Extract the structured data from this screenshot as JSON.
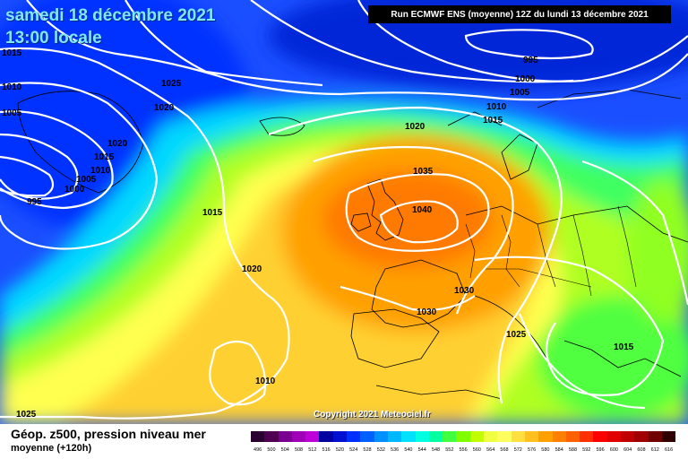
{
  "header": {
    "date": "samedi 18 décembre 2021",
    "time": "13:00 locale",
    "run": "Run ECMWF ENS (moyenne) 12Z du lundi 13 décembre 2021"
  },
  "copyright": "Copyright 2021 Meteociel.fr",
  "footer": {
    "title": "Géop. z500, pression niveau mer",
    "subtitle": "moyenne   (+120h)"
  },
  "isobar_labels": [
    {
      "id": "iso-1015-a",
      "text": "1015"
    },
    {
      "id": "iso-1010-a",
      "text": "1010"
    },
    {
      "id": "iso-1005-a",
      "text": "1005"
    },
    {
      "id": "iso-1025-a",
      "text": "1025"
    },
    {
      "id": "iso-1020-a",
      "text": "1020"
    },
    {
      "id": "iso-1020-b",
      "text": "1020"
    },
    {
      "id": "iso-1015-b",
      "text": "1015"
    },
    {
      "id": "iso-1010-b",
      "text": "1010"
    },
    {
      "id": "iso-1005-b",
      "text": "1005"
    },
    {
      "id": "iso-1000-a",
      "text": "1000"
    },
    {
      "id": "iso-995-a",
      "text": "995"
    },
    {
      "id": "iso-1015-c",
      "text": "1015"
    },
    {
      "id": "iso-1020-c",
      "text": "1020"
    },
    {
      "id": "iso-1010-c",
      "text": "1010"
    },
    {
      "id": "iso-1025-b",
      "text": "1025"
    },
    {
      "id": "iso-995-b",
      "text": "995"
    },
    {
      "id": "iso-1000-b",
      "text": "1000"
    },
    {
      "id": "iso-1005-c",
      "text": "1005"
    },
    {
      "id": "iso-1010-d",
      "text": "1010"
    },
    {
      "id": "iso-1015-d",
      "text": "1015"
    },
    {
      "id": "iso-1020-d",
      "text": "1020"
    },
    {
      "id": "iso-1035",
      "text": "1035"
    },
    {
      "id": "iso-1040",
      "text": "1040"
    },
    {
      "id": "iso-1030-a",
      "text": "1030"
    },
    {
      "id": "iso-1030-b",
      "text": "1030"
    },
    {
      "id": "iso-1025-c",
      "text": "1025"
    },
    {
      "id": "iso-1015-e",
      "text": "1015"
    }
  ],
  "legend_scale": {
    "labels": [
      "496",
      "500",
      "504",
      "508",
      "512",
      "516",
      "520",
      "524",
      "528",
      "532",
      "536",
      "540",
      "544",
      "548",
      "552",
      "556",
      "560",
      "564",
      "568",
      "572",
      "576",
      "580",
      "584",
      "588",
      "592",
      "596",
      "600",
      "604",
      "608",
      "612",
      "616"
    ],
    "colors": [
      "#2a0030",
      "#500050",
      "#7a0090",
      "#a000b8",
      "#c000d8",
      "#0000a0",
      "#0010d0",
      "#0030ff",
      "#0060ff",
      "#0090ff",
      "#00b8ff",
      "#00e0ff",
      "#00ffe0",
      "#00ffa0",
      "#40ff40",
      "#80ff00",
      "#c0ff00",
      "#f0ff40",
      "#ffff60",
      "#ffe040",
      "#ffc020",
      "#ffa000",
      "#ff8000",
      "#ff6000",
      "#ff3000",
      "#ff0000",
      "#e00000",
      "#c00000",
      "#a00000",
      "#700000",
      "#300000"
    ]
  }
}
